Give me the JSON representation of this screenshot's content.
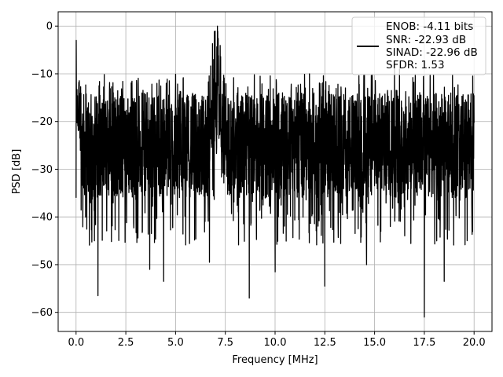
{
  "chart_data": {
    "type": "line",
    "title": "",
    "xlabel": "Frequency [MHz]",
    "ylabel": "PSD [dB]",
    "xlim": [
      -0.9,
      20.9
    ],
    "ylim": [
      -64,
      3
    ],
    "grid": true,
    "legend_position": "top-right",
    "xticks": [
      0.0,
      2.5,
      5.0,
      7.5,
      10.0,
      12.5,
      15.0,
      17.5,
      20.0
    ],
    "xtick_labels": [
      "0.0",
      "2.5",
      "5.0",
      "7.5",
      "10.0",
      "12.5",
      "15.0",
      "17.5",
      "20.0"
    ],
    "yticks": [
      0,
      -10,
      -20,
      -30,
      -40,
      -50,
      -60
    ],
    "ytick_labels": [
      "0",
      "−10",
      "−20",
      "−30",
      "−40",
      "−50",
      "−60"
    ],
    "series": [
      {
        "color": "#000000",
        "description": "dense noisy power spectral density trace over 0-20 MHz",
        "x_range": [
          0.0,
          20.0
        ],
        "noise_floor_band": [
          -36,
          -14
        ],
        "peaks": [
          {
            "x": 0.0,
            "y": -3
          },
          {
            "x": 7.1,
            "y": 0
          },
          {
            "x": 16.0,
            "y": -7.5
          },
          {
            "x": 16.25,
            "y": -9
          }
        ],
        "deep_nulls": [
          {
            "x": 1.1,
            "y": -56.5
          },
          {
            "x": 3.7,
            "y": -51
          },
          {
            "x": 4.4,
            "y": -53.5
          },
          {
            "x": 6.7,
            "y": -49.5
          },
          {
            "x": 8.7,
            "y": -57
          },
          {
            "x": 10.0,
            "y": -51.5
          },
          {
            "x": 12.5,
            "y": -54.5
          },
          {
            "x": 14.6,
            "y": -50
          },
          {
            "x": 17.5,
            "y": -61
          },
          {
            "x": 18.5,
            "y": -53.5
          }
        ]
      }
    ],
    "legend": {
      "lines": [
        "ENOB: -4.11 bits",
        "SNR: -22.93 dB",
        "SINAD: -22.96 dB",
        "SFDR: 1.53"
      ]
    }
  }
}
